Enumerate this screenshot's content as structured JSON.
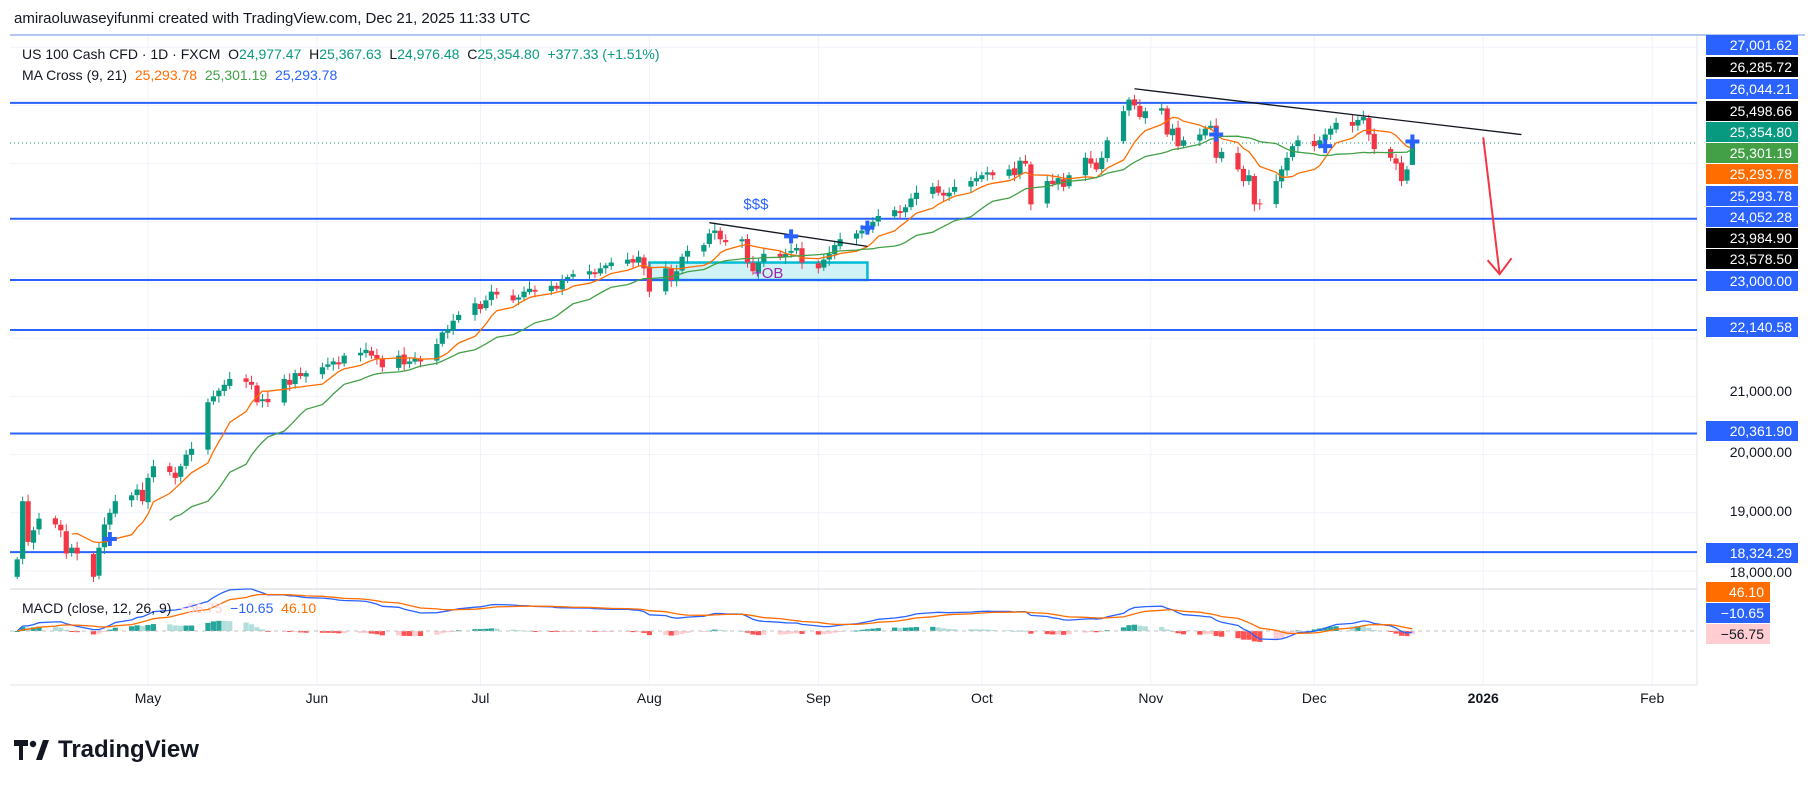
{
  "credit": "amiraoluwaseyifunmi created with TradingView.com, Dec 21, 2025 11:33 UTC",
  "legend": {
    "symbol": "US 100 Cash CFD · 1D · FXCM",
    "open_label": "O",
    "open": "24,977.47",
    "high_label": "H",
    "high": "25,367.63",
    "low_label": "L",
    "low": "24,976.48",
    "close_label": "C",
    "close": "25,354.80",
    "change": "+377.33 (+1.51%)",
    "ma_title": "MA Cross (9, 21)",
    "ma_values": [
      "25,293.78",
      "25,301.19",
      "25,293.78"
    ]
  },
  "macd_legend": {
    "title": "MACD (close, 12, 26, 9)",
    "values": [
      "−56.75",
      "−10.65",
      "46.10"
    ]
  },
  "logo": "TradingView",
  "colors": {
    "up": "#089981",
    "down": "#f23645",
    "ma_fast": "#ff6d00",
    "ma_slow": "#43a047",
    "level": "#2962ff",
    "macd": "#2962ff",
    "signal": "#ff6d00",
    "arrow": "#f23645",
    "ob_box": "#00bcd4"
  },
  "chart_data": {
    "type": "candlestick",
    "symbol": "US 100 Cash CFD",
    "interval": "1D",
    "start_date": "2025-04-07",
    "closes": [
      18200,
      19200,
      18500,
      18700,
      18900,
      18800,
      18700,
      18300,
      18400,
      18300,
      17900,
      18400,
      18800,
      19000,
      19200,
      19300,
      19400,
      19200,
      19600,
      19800,
      19700,
      19600,
      19800,
      20000,
      20100,
      20900,
      21000,
      21100,
      21200,
      21300,
      21250,
      21200,
      20900,
      20950,
      20900,
      21300,
      21200,
      21400,
      21350,
      21400,
      21500,
      21550,
      21600,
      21550,
      21700,
      21750,
      21800,
      21700,
      21650,
      21500,
      21700,
      21550,
      21600,
      21650,
      21600,
      21900,
      22100,
      22150,
      22300,
      22400,
      22600,
      22500,
      22650,
      22800,
      22750,
      22650,
      22700,
      22800,
      22850,
      22800,
      22900,
      22850,
      23000,
      23050,
      23100,
      23150,
      23100,
      23200,
      23250,
      23300,
      23350,
      23300,
      23400,
      23200,
      22800,
      23200,
      23000,
      23150,
      23400,
      23500,
      23600,
      23800,
      23850,
      23700,
      23650,
      23700,
      23300,
      23150,
      23300,
      23450,
      23400,
      23450,
      23500,
      23550,
      23300,
      23200,
      23350,
      23450,
      23600,
      23700,
      23800,
      23850,
      23900,
      24000,
      24100,
      24200,
      24150,
      24250,
      24400,
      24500,
      24600,
      24500,
      24450,
      24500,
      24600,
      24700,
      24750,
      24800,
      24850,
      24800,
      24900,
      24800,
      25050,
      25000,
      24300,
      24700,
      24650,
      24750,
      24600,
      24800,
      25100,
      25000,
      24900,
      25100,
      25400,
      25900,
      26100,
      26000,
      25800,
      25900,
      25950,
      25500,
      25600,
      25300,
      25400,
      25500,
      25600,
      25650,
      25100,
      25200,
      24900,
      24700,
      24800,
      24300,
      24300,
      24700,
      24900,
      25100,
      25300,
      25400,
      25300,
      25400,
      25500,
      25600,
      25700,
      25650,
      25750,
      25800,
      25500,
      25250,
      25100,
      25000,
      24700,
      24900,
      25354.8
    ],
    "last": {
      "open": 24977.47,
      "high": 25367.63,
      "low": 24976.48,
      "close": 25354.8
    },
    "indicators": {
      "ma_cross": [
        9,
        21
      ],
      "macd": [
        12,
        26,
        9
      ]
    },
    "y_axis_ticks": [
      "21,000.00",
      "20,000.00",
      "19,000.00",
      "18,000.00"
    ],
    "x_axis_ticks": [
      {
        "label": "May",
        "date": "2025-05-01"
      },
      {
        "label": "Jun",
        "date": "2025-06-01"
      },
      {
        "label": "Jul",
        "date": "2025-07-01"
      },
      {
        "label": "Aug",
        "date": "2025-08-01"
      },
      {
        "label": "Sep",
        "date": "2025-09-01"
      },
      {
        "label": "Oct",
        "date": "2025-10-01"
      },
      {
        "label": "Nov",
        "date": "2025-11-01"
      },
      {
        "label": "Dec",
        "date": "2025-12-01"
      },
      {
        "label": "2026",
        "date": "2026-01-01",
        "bold": true
      },
      {
        "label": "Feb",
        "date": "2026-02-01"
      }
    ],
    "horizontal_levels": [
      26044.21,
      24052.28,
      23000.0,
      22140.58,
      20361.9,
      18324.29
    ],
    "current_price_line": 25354.8,
    "trendlines": [
      {
        "from": {
          "date": "2025-10-29",
          "price": 26285.72
        },
        "to": {
          "date": "2026-01-08",
          "price": 25498.66
        }
      },
      {
        "from": {
          "date": "2025-08-12",
          "price": 23984.9
        },
        "to": {
          "date": "2025-09-10",
          "price": 23578.5
        }
      }
    ],
    "zone_box": {
      "from_date": "2025-08-01",
      "to_date": "2025-09-10",
      "top": 23300,
      "bottom": 23000,
      "label": "+OB"
    },
    "text_annotation": {
      "label": "$$$",
      "date": "2025-08-21",
      "price": 24200
    },
    "arrow": {
      "from": {
        "date": "2026-01-01",
        "price": 25450
      },
      "to": {
        "date": "2026-01-04",
        "price": 23100
      }
    },
    "cross_markers": [
      {
        "date": "2025-04-24",
        "price": 18550
      },
      {
        "date": "2025-08-27",
        "price": 23750
      },
      {
        "date": "2025-09-10",
        "price": 23900
      },
      {
        "date": "2025-11-13",
        "price": 25500
      },
      {
        "date": "2025-12-03",
        "price": 25300
      },
      {
        "date": "2025-12-19",
        "price": 25380
      }
    ],
    "price_labels": [
      {
        "text": "27,001.62",
        "bg": "#2962ff",
        "fg": "#ffffff"
      },
      {
        "text": "26,285.72",
        "bg": "#000000",
        "fg": "#ffffff"
      },
      {
        "text": "26,044.21",
        "bg": "#2962ff",
        "fg": "#ffffff"
      },
      {
        "text": "25,498.66",
        "bg": "#000000",
        "fg": "#ffffff"
      },
      {
        "text": "25,354.80",
        "bg": "#089981",
        "fg": "#ffffff"
      },
      {
        "text": "25,301.19",
        "bg": "#43a047",
        "fg": "#ffffff"
      },
      {
        "text": "25,293.78",
        "bg": "#ff6d00",
        "fg": "#ffffff"
      },
      {
        "text": "25,293.78",
        "bg": "#2962ff",
        "fg": "#ffffff"
      },
      {
        "text": "24,052.28",
        "bg": "#2962ff",
        "fg": "#ffffff"
      },
      {
        "text": "23,984.90",
        "bg": "#000000",
        "fg": "#ffffff"
      },
      {
        "text": "23,578.50",
        "bg": "#000000",
        "fg": "#ffffff"
      },
      {
        "text": "23,000.00",
        "bg": "#2962ff",
        "fg": "#ffffff"
      },
      {
        "text": "22,140.58",
        "bg": "#2962ff",
        "fg": "#ffffff"
      },
      {
        "text": "21,000.00",
        "bg": "",
        "fg": "#131722"
      },
      {
        "text": "20,361.90",
        "bg": "#2962ff",
        "fg": "#ffffff"
      },
      {
        "text": "20,000.00",
        "bg": "",
        "fg": "#131722"
      },
      {
        "text": "19,000.00",
        "bg": "",
        "fg": "#131722"
      },
      {
        "text": "18,324.29",
        "bg": "#2962ff",
        "fg": "#ffffff"
      },
      {
        "text": "18,000.00",
        "bg": "",
        "fg": "#131722"
      }
    ],
    "macd_labels": [
      {
        "text": "46.10",
        "bg": "#ff6d00",
        "fg": "#ffffff"
      },
      {
        "text": "−10.65",
        "bg": "#2962ff",
        "fg": "#ffffff"
      },
      {
        "text": "−56.75",
        "bg": "#ffcdd2",
        "fg": "#131722"
      }
    ]
  }
}
